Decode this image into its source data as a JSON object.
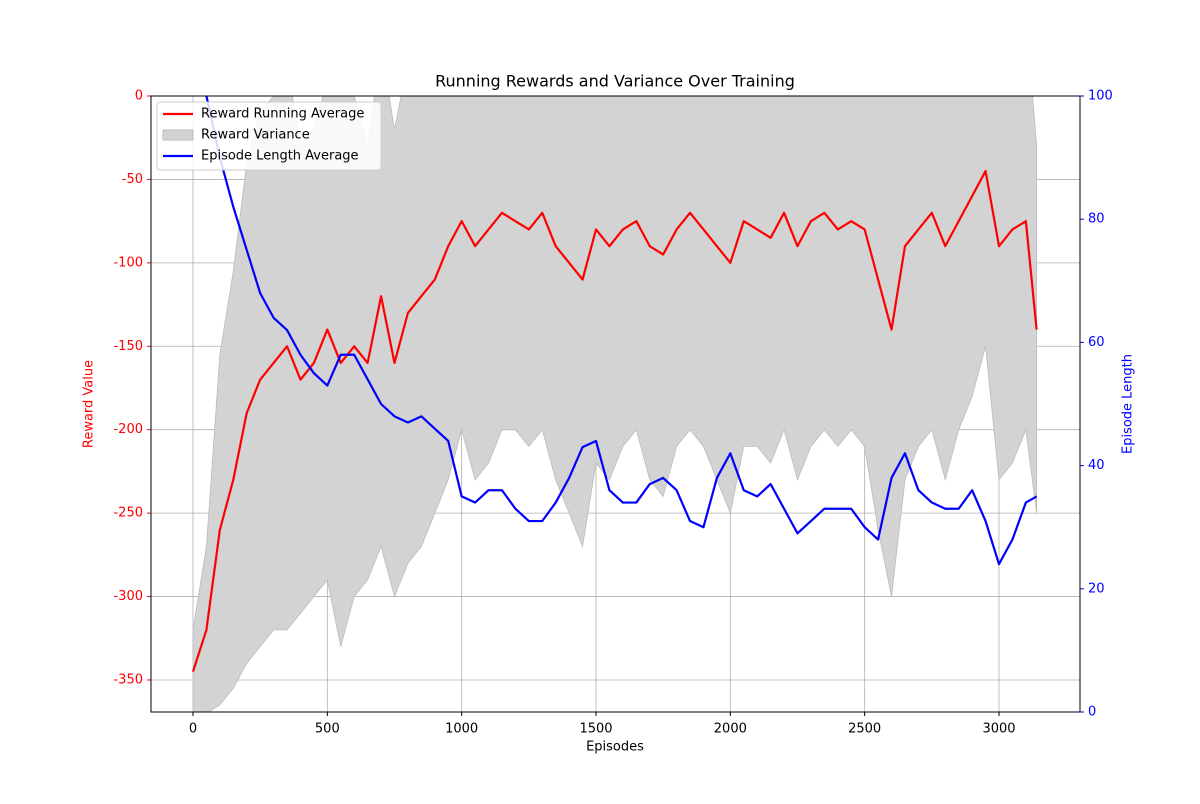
{
  "chart_data": {
    "type": "line",
    "title": "Running Rewards and Variance Over Training",
    "xlabel": "Episodes",
    "ylabel": "Reward Value",
    "y2label": "Episode Length",
    "x": [
      0,
      50,
      100,
      150,
      200,
      250,
      300,
      350,
      400,
      450,
      500,
      550,
      600,
      650,
      700,
      750,
      800,
      850,
      900,
      950,
      1000,
      1050,
      1100,
      1150,
      1200,
      1250,
      1300,
      1350,
      1400,
      1450,
      1500,
      1550,
      1600,
      1650,
      1700,
      1750,
      1800,
      1850,
      1900,
      1950,
      2000,
      2050,
      2100,
      2150,
      2200,
      2250,
      2300,
      2350,
      2400,
      2450,
      2500,
      2550,
      2600,
      2650,
      2700,
      2750,
      2800,
      2850,
      2900,
      2950,
      3000,
      3050,
      3100,
      3140
    ],
    "series": [
      {
        "name": "Reward Running Average",
        "color": "#ff0000",
        "type": "line",
        "values": [
          -345,
          -320,
          -260,
          -230,
          -190,
          -170,
          -160,
          -150,
          -170,
          -160,
          -140,
          -160,
          -150,
          -160,
          -120,
          -160,
          -130,
          -120,
          -110,
          -90,
          -75,
          -90,
          -80,
          -70,
          -75,
          -80,
          -70,
          -90,
          -100,
          -110,
          -80,
          -90,
          -80,
          -75,
          -90,
          -95,
          -80,
          -70,
          -80,
          -90,
          -100,
          -75,
          -80,
          -85,
          -70,
          -90,
          -75,
          -70,
          -80,
          -75,
          -80,
          -110,
          -140,
          -90,
          -80,
          -70,
          -90,
          -75,
          -60,
          -45,
          -90,
          -80,
          -75,
          -140
        ]
      },
      {
        "name": "Reward Variance",
        "color": "#d3d3d3",
        "type": "band",
        "lower": [
          -370,
          -370,
          -365,
          -355,
          -340,
          -330,
          -320,
          -320,
          -310,
          -300,
          -290,
          -330,
          -300,
          -290,
          -270,
          -300,
          -280,
          -270,
          -250,
          -230,
          -200,
          -230,
          -220,
          -200,
          -200,
          -210,
          -200,
          -230,
          -250,
          -270,
          -220,
          -230,
          -210,
          -200,
          -230,
          -240,
          -210,
          -200,
          -210,
          -230,
          -250,
          -210,
          -210,
          -220,
          -200,
          -230,
          -210,
          -200,
          -210,
          -200,
          -210,
          -260,
          -300,
          -230,
          -210,
          -200,
          -230,
          -200,
          -180,
          -150,
          -230,
          -220,
          -200,
          -250
        ],
        "upper": [
          -320,
          -270,
          -155,
          -105,
          -40,
          -10,
          0,
          20,
          -30,
          -20,
          10,
          10,
          0,
          -30,
          30,
          -20,
          20,
          30,
          30,
          50,
          50,
          50,
          60,
          60,
          50,
          50,
          60,
          50,
          50,
          50,
          60,
          50,
          50,
          50,
          50,
          50,
          50,
          60,
          50,
          50,
          50,
          60,
          50,
          50,
          60,
          50,
          60,
          60,
          50,
          50,
          50,
          40,
          20,
          50,
          50,
          60,
          50,
          50,
          60,
          60,
          50,
          60,
          50,
          -30
        ]
      },
      {
        "name": "Episode Length Average",
        "color": "#0000ff",
        "type": "line",
        "axis": "y2",
        "values": [
          115,
          100,
          90,
          82,
          75,
          68,
          64,
          62,
          58,
          55,
          53,
          58,
          58,
          54,
          50,
          48,
          47,
          48,
          46,
          44,
          35,
          34,
          36,
          36,
          33,
          31,
          31,
          34,
          38,
          43,
          44,
          36,
          34,
          34,
          37,
          38,
          36,
          31,
          30,
          38,
          42,
          36,
          35,
          37,
          33,
          29,
          31,
          33,
          33,
          33,
          30,
          28,
          38,
          42,
          36,
          34,
          33,
          33,
          36,
          31,
          24,
          28,
          34,
          35
        ]
      }
    ],
    "xlim": [
      -156.3,
      3301.5
    ],
    "xticks": [
      0,
      500,
      1000,
      1500,
      2000,
      2500,
      3000
    ],
    "ylim": [
      -369.2,
      0
    ],
    "yticks": [
      -350,
      -300,
      -250,
      -200,
      -150,
      -100,
      -50,
      0
    ],
    "y2lim": [
      0,
      100
    ],
    "y2ticks": [
      0,
      20,
      40,
      60,
      80,
      100
    ],
    "grid": true,
    "legend": "upper left"
  }
}
